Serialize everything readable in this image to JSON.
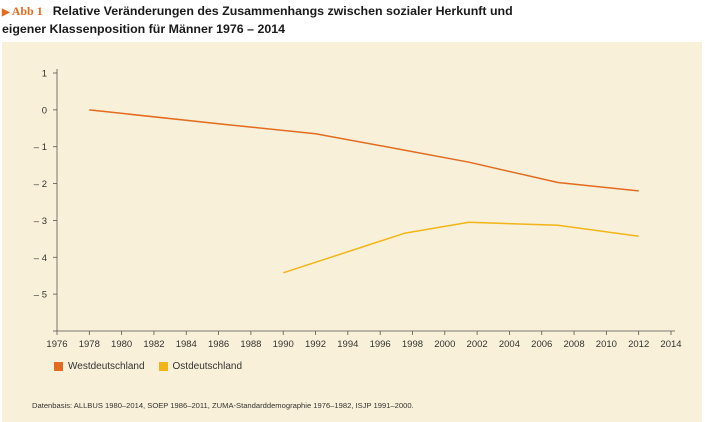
{
  "header": {
    "marker": "▶",
    "figure_label": "Abb 1",
    "title_line1": "Relative Veränderungen des Zusammenhangs zwischen sozialer Herkunft und",
    "title_line2": "eigener Klassenposition für Männer 1976 – 2014"
  },
  "chart_data": {
    "type": "line",
    "title": "Relative Veränderungen des Zusammenhangs zwischen sozialer Herkunft und eigener Klassenposition für Männer 1976 – 2014",
    "xlabel": "",
    "ylabel": "",
    "xlim": [
      1976,
      2014
    ],
    "ylim": [
      -6,
      1
    ],
    "x_ticks": [
      "1976",
      "1978",
      "1980",
      "1982",
      "1984",
      "1986",
      "1988",
      "1990",
      "1992",
      "1994",
      "1996",
      "1998",
      "2000",
      "2002",
      "2004",
      "2006",
      "2008",
      "2010",
      "2012",
      "2014"
    ],
    "y_ticks": [
      {
        "value": 1,
        "label": "1"
      },
      {
        "value": 0,
        "label": "0"
      },
      {
        "value": -1,
        "label": "– 1"
      },
      {
        "value": -2,
        "label": "– 2"
      },
      {
        "value": -3,
        "label": "– 3"
      },
      {
        "value": -4,
        "label": "– 4"
      },
      {
        "value": -5,
        "label": "– 5"
      },
      {
        "value": -6,
        "label": ""
      }
    ],
    "grid": false,
    "legend_position": "bottom-left",
    "series": [
      {
        "name": "Westdeutschland",
        "color": "#e26b1f",
        "points": [
          [
            1978,
            0.0
          ],
          [
            1986.5,
            -0.4
          ],
          [
            1992,
            -0.65
          ],
          [
            1997,
            -1.05
          ],
          [
            2001.5,
            -1.42
          ],
          [
            2007,
            -1.97
          ],
          [
            2012,
            -2.2
          ]
        ]
      },
      {
        "name": "Ostdeutschland",
        "color": "#f2b519",
        "points": [
          [
            1990,
            -4.42
          ],
          [
            1997.5,
            -3.35
          ],
          [
            2001.5,
            -3.05
          ],
          [
            2007,
            -3.13
          ],
          [
            2012,
            -3.43
          ]
        ]
      }
    ]
  },
  "source": "Datenbasis: ALLBUS 1980–2014, SOEP 1986–2011, ZUMA-Standarddemographie 1976–1982, ISJP 1991–2000."
}
